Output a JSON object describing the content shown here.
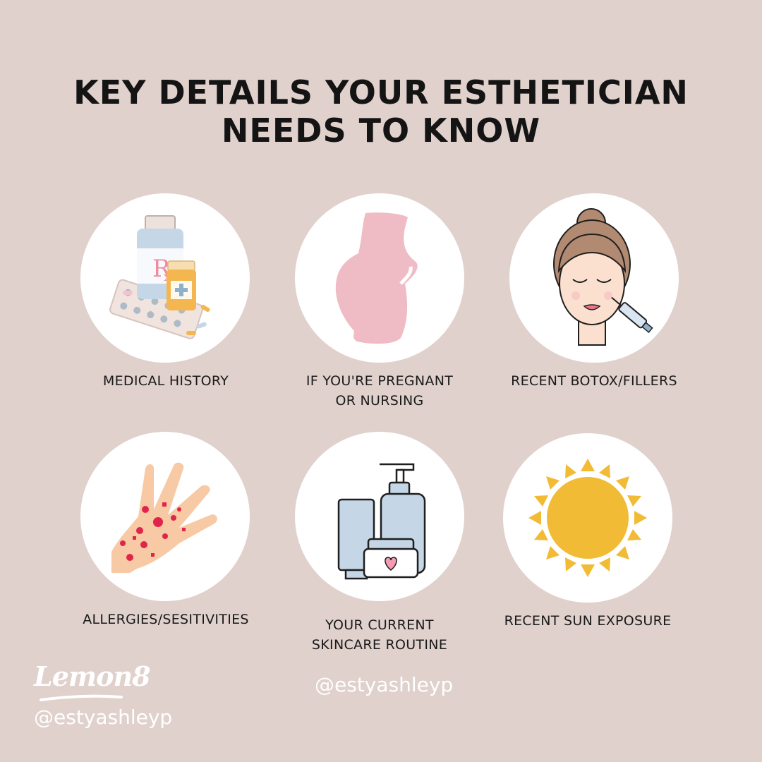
{
  "title": {
    "line1": "KEY DETAILS YOUR ESTHETICIAN",
    "line2": "NEEDS TO KNOW"
  },
  "items": [
    {
      "icon": "prescription-bottle-icon",
      "line1": "MEDICAL HISTORY",
      "line2": ""
    },
    {
      "icon": "pregnant-silhouette-icon",
      "line1": "IF YOU'RE PREGNANT",
      "line2": "OR NURSING"
    },
    {
      "icon": "face-injection-icon",
      "line1": "RECENT BOTOX/FILLERS",
      "line2": ""
    },
    {
      "icon": "hand-rash-icon",
      "line1": "ALLERGIES/SESITIVITIES",
      "line2": ""
    },
    {
      "icon": "skincare-products-icon",
      "line1": "YOUR CURRENT",
      "line2": "SKINCARE ROUTINE"
    },
    {
      "icon": "sun-icon",
      "line1": "RECENT SUN EXPOSURE",
      "line2": ""
    }
  ],
  "watermark": {
    "brand": "Lemon8",
    "handle": "@estyashleyp",
    "center_handle": "@estyashleyp"
  },
  "colors": {
    "background": "#e0d1cc",
    "circle": "#ffffff",
    "pink": "#efbcc6",
    "sun": "#f2bb35",
    "skin": "#f7c9a4",
    "rash": "#e0254a",
    "bottle_blue": "#c5d6e6"
  }
}
